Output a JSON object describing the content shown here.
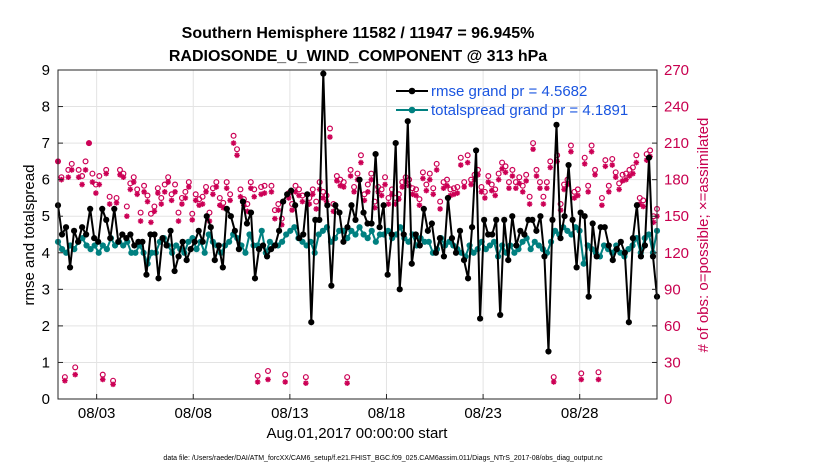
{
  "chart_data": {
    "type": "line",
    "title_line1": "Southern Hemisphere 11582 / 11947 = 96.945%",
    "title_line2": "RADIOSONDE_U_WIND_COMPONENT @ 313 hPa",
    "ylabel": "rmse and totalspread",
    "ylabel_right": "# of obs: o=possible; ×=assimilated",
    "xlabel": "Aug.01,2017 00:00:00 start",
    "footnote": "data file: /Users/raeder/DAI/ATM_forcXX/CAM6_setup/f.e21.FHIST_BGC.f09_025.CAM6assim.011/Diags_NTrS_2017-08/obs_diag_output.nc",
    "xlim": [
      1.0,
      32.0
    ],
    "ylim": [
      0,
      9
    ],
    "ylim_right": [
      0,
      270
    ],
    "x_ticks": [
      {
        "v": 3,
        "label": "08/03"
      },
      {
        "v": 8,
        "label": "08/08"
      },
      {
        "v": 13,
        "label": "08/13"
      },
      {
        "v": 18,
        "label": "08/18"
      },
      {
        "v": 23,
        "label": "08/23"
      },
      {
        "v": 28,
        "label": "08/28"
      }
    ],
    "y_ticks": [
      "0",
      "1",
      "2",
      "3",
      "4",
      "5",
      "6",
      "7",
      "8",
      "9"
    ],
    "y_ticks_right": [
      "0",
      "30",
      "60",
      "90",
      "120",
      "150",
      "180",
      "210",
      "240",
      "270"
    ],
    "legend": [
      {
        "label": "rmse grand pr = 4.5682",
        "color": "#000000"
      },
      {
        "label": "totalspread grand pr = 4.1891",
        "color": "#008080"
      }
    ],
    "colors": {
      "rmse": "#000000",
      "spread": "#008080",
      "obs": "#cc0055",
      "grid": "#e3e3e3"
    },
    "series": [
      {
        "name": "rmse",
        "values": [
          5.3,
          4.5,
          4.7,
          3.6,
          4.6,
          4.3,
          4.7,
          4.5,
          5.2,
          4.4,
          4.3,
          5.2,
          4.9,
          4.4,
          5.2,
          4.3,
          4.5,
          4.4,
          4.5,
          4.2,
          4.3,
          4.3,
          3.4,
          4.5,
          4.5,
          3.3,
          4.4,
          4.2,
          4.6,
          3.5,
          3.9,
          4.3,
          3.8,
          4.1,
          4.3,
          4.6,
          4.3,
          5.0,
          4.7,
          3.8,
          4.2,
          3.6,
          5.2,
          5.0,
          4.6,
          4.1,
          5.4,
          4.8,
          5.1,
          3.3,
          4.1,
          4.2,
          3.9,
          4.1,
          4.2,
          4.6,
          5.4,
          5.6,
          5.7,
          5.3,
          4.4,
          4.5,
          5.6,
          2.1,
          4.9,
          4.9,
          8.9,
          5.3,
          3.1,
          5.3,
          5.1,
          4.3,
          4.7,
          5.3,
          4.9,
          6.0,
          5.1,
          4.8,
          4.8,
          6.7,
          4.7,
          5.3,
          3.4,
          4.5,
          7.0,
          3.0,
          4.5,
          7.6,
          3.7,
          4.5,
          4.2,
          5.2,
          4.6,
          4.8,
          4.0,
          4.4,
          3.9,
          5.5,
          4.4,
          4.0,
          4.6,
          3.8,
          3.3,
          4.7,
          6.8,
          2.2,
          4.9,
          4.5,
          4.5,
          4.9,
          2.3,
          4.9,
          3.8,
          5.0,
          4.2,
          4.6,
          4.5,
          4.9,
          4.9,
          4.6,
          5.0,
          3.9,
          1.3,
          4.9,
          7.5,
          4.4,
          5.0,
          6.4,
          4.9,
          3.6,
          5.1,
          5.0,
          2.8,
          4.8,
          3.9,
          4.7,
          4.7,
          4.2,
          3.8,
          4.1,
          4.3,
          4.0,
          2.1,
          4.4,
          5.3,
          3.9,
          4.2,
          6.6,
          3.9,
          2.8
        ]
      },
      {
        "name": "totalspread",
        "values": [
          4.3,
          4.1,
          4.0,
          4.2,
          4.1,
          4.3,
          4.4,
          4.2,
          4.1,
          4.2,
          4.0,
          4.2,
          4.1,
          4.4,
          4.2,
          4.3,
          4.2,
          4.3,
          4.0,
          4.0,
          4.2,
          4.0,
          3.7,
          4.0,
          4.0,
          4.3,
          4.4,
          4.2,
          4.0,
          4.2,
          4.1,
          4.0,
          4.3,
          4.4,
          4.1,
          4.3,
          4.0,
          4.5,
          4.3,
          4.2,
          4.0,
          4.2,
          4.3,
          4.5,
          4.4,
          4.2,
          4.0,
          4.5,
          4.2,
          4.2,
          4.6,
          4.0,
          4.3,
          4.2,
          4.2,
          4.3,
          4.5,
          4.6,
          4.7,
          4.4,
          4.3,
          4.2,
          4.3,
          4.0,
          4.5,
          4.6,
          4.7,
          4.3,
          4.4,
          4.6,
          4.6,
          4.4,
          4.6,
          4.5,
          4.7,
          4.5,
          4.4,
          4.6,
          4.3,
          4.5,
          4.5,
          4.6,
          4.4,
          4.5,
          4.7,
          4.4,
          4.3,
          4.5,
          4.2,
          4.4,
          4.3,
          4.3,
          4.0,
          4.1,
          4.4,
          4.2,
          4.3,
          4.2,
          4.1,
          4.0,
          3.9,
          4.2,
          4.0,
          4.1,
          4.3,
          4.1,
          4.2,
          4.3,
          3.9,
          4.2,
          4.0,
          4.2,
          4.0,
          4.1,
          4.3,
          4.4,
          4.1,
          4.3,
          4.2,
          4.1,
          4.0,
          4.3,
          4.6,
          4.5,
          4.7,
          4.6,
          4.5,
          4.7,
          4.6,
          3.7,
          4.2,
          4.1,
          4.0,
          3.9,
          4.2,
          4.1,
          4.0,
          4.2,
          4.0,
          3.9,
          4.1,
          4.2,
          4.4,
          4.0,
          4.4,
          4.5,
          4.0,
          4.6
        ]
      },
      {
        "name": "obs_possible",
        "values": [
          195,
          182,
          18,
          188,
          193,
          26,
          188,
          183,
          195,
          210,
          185,
          176,
          183,
          20,
          188,
          166,
          15,
          165,
          188,
          185,
          158,
          177,
          182,
          172,
          153,
          175,
          167,
          152,
          158,
          173,
          165,
          176,
          182,
          168,
          176,
          153,
          165,
          170,
          178,
          152,
          168,
          164,
          166,
          174,
          153,
          173,
          178,
          165,
          161,
          178,
          168,
          216,
          205,
          172,
          164,
          160,
          178,
          172,
          19,
          174,
          175,
          23,
          175,
          155,
          160,
          148,
          20,
          169,
          160,
          175,
          172,
          167,
          18,
          165,
          172,
          162,
          178,
          170,
          167,
          222,
          160,
          183,
          180,
          178,
          18,
          188,
          174,
          185,
          200,
          168,
          176,
          185,
          162,
          174,
          172,
          182,
          165,
          172,
          165,
          168,
          178,
          182,
          180,
          173,
          172,
          164,
          186,
          176,
          185,
          173,
          193,
          162,
          178,
          180,
          172,
          173,
          174,
          198,
          178,
          200,
          180,
          184,
          188,
          174,
          170,
          183,
          176,
          172,
          185,
          194,
          191,
          178,
          188,
          178,
          182,
          175,
          184,
          166,
          210,
          188,
          178,
          166,
          178,
          195,
          18,
          200,
          160,
          176,
          180,
          208,
          170,
          172,
          21,
          198,
          175,
          208,
          188,
          22,
          165,
          196,
          175,
          197,
          186,
          177,
          184,
          185,
          188,
          190,
          200,
          165,
          163,
          201,
          204,
          150,
          156
        ]
      },
      {
        "name": "obs_assimilated",
        "values": [
          195,
          180,
          15,
          182,
          188,
          20,
          182,
          176,
          188,
          210,
          178,
          169,
          176,
          16,
          185,
          160,
          12,
          161,
          184,
          182,
          150,
          172,
          178,
          168,
          146,
          170,
          162,
          145,
          154,
          169,
          160,
          170,
          178,
          163,
          170,
          146,
          160,
          165,
          174,
          147,
          163,
          159,
          160,
          170,
          146,
          168,
          174,
          159,
          157,
          173,
          163,
          210,
          200,
          166,
          159,
          154,
          173,
          166,
          14,
          168,
          169,
          16,
          170,
          148,
          155,
          143,
          14,
          165,
          155,
          170,
          167,
          162,
          13,
          160,
          168,
          156,
          172,
          165,
          162,
          215,
          154,
          179,
          175,
          174,
          13,
          183,
          170,
          180,
          194,
          163,
          170,
          180,
          157,
          170,
          167,
          176,
          160,
          168,
          160,
          164,
          174,
          178,
          175,
          168,
          167,
          159,
          181,
          171,
          180,
          168,
          188,
          156,
          173,
          175,
          167,
          168,
          169,
          192,
          174,
          194,
          176,
          180,
          184,
          170,
          165,
          178,
          171,
          167,
          180,
          189,
          186,
          173,
          183,
          173,
          177,
          170,
          179,
          160,
          205,
          183,
          173,
          160,
          173,
          190,
          14,
          195,
          155,
          172,
          176,
          203,
          165,
          167,
          16,
          193,
          170,
          203,
          184,
          16,
          159,
          191,
          170,
          192,
          182,
          172,
          179,
          180,
          183,
          185,
          194,
          160,
          158,
          196,
          199,
          145,
          150
        ]
      }
    ]
  }
}
